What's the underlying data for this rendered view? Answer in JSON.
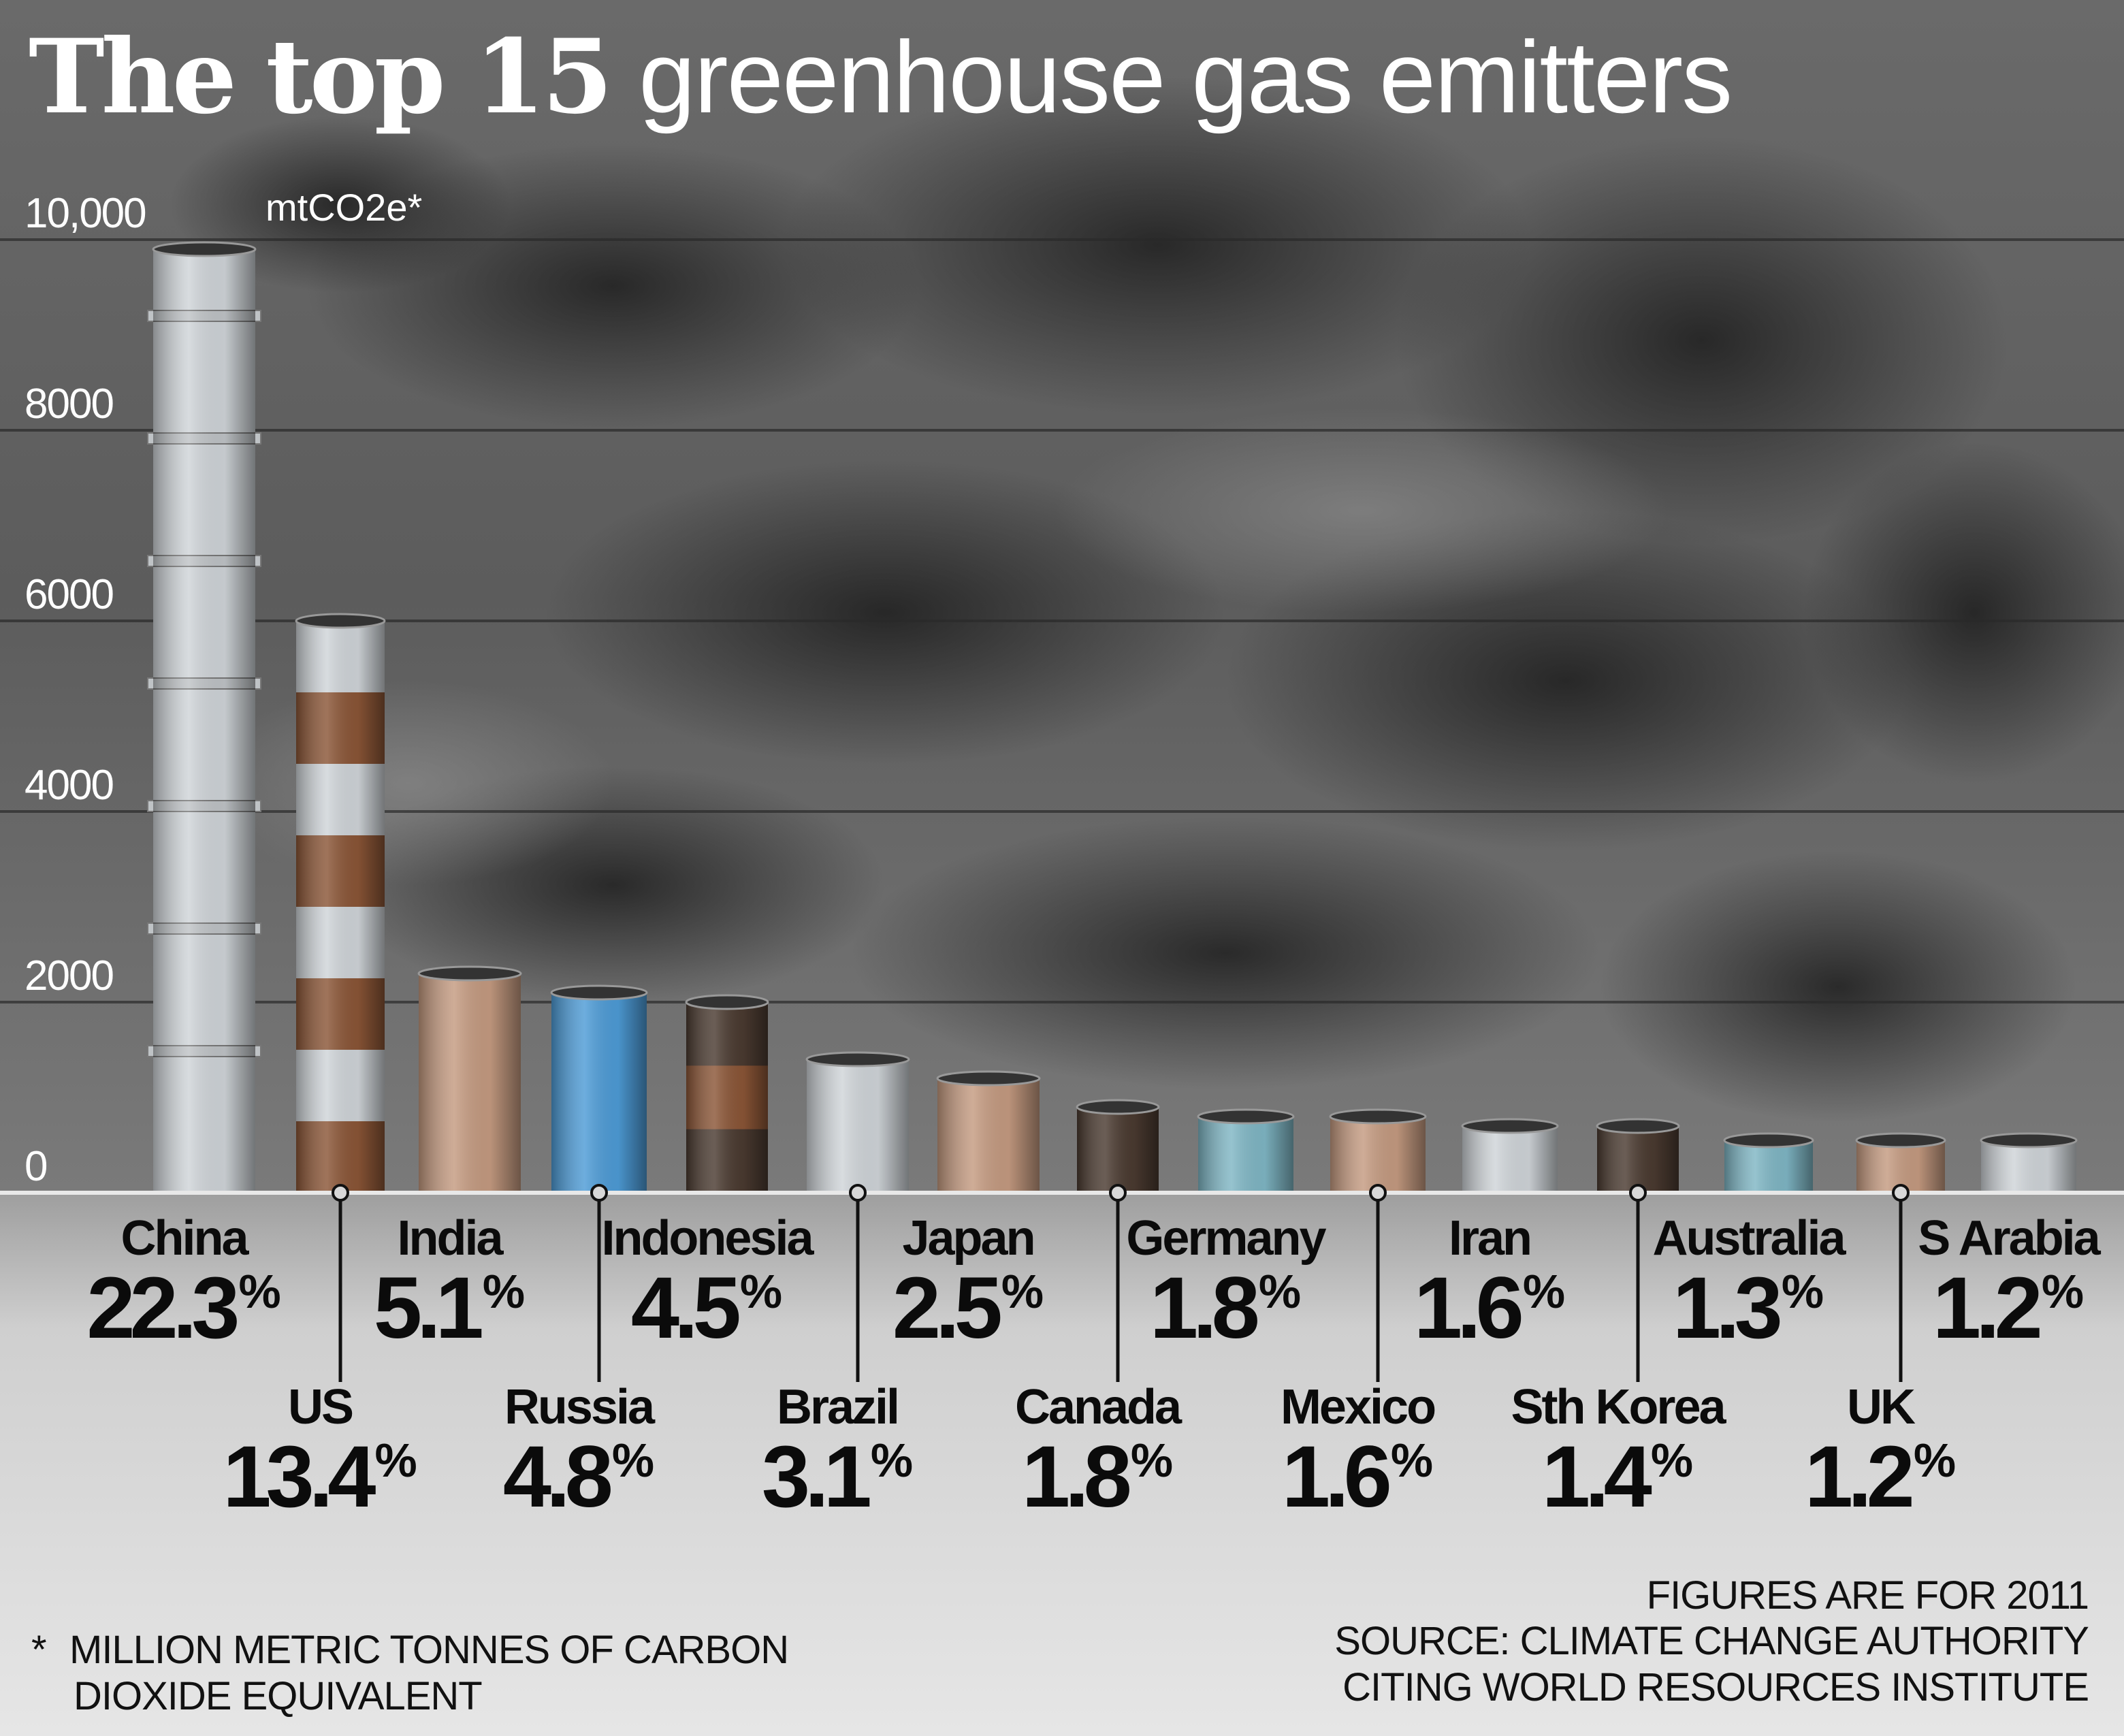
{
  "title": {
    "bold": "The top 15",
    "light": "greenhouse gas emitters"
  },
  "unit_label": "mtCO2e*",
  "footnote": {
    "marker": "*",
    "line1": "MILLION METRIC TONNES OF CARBON",
    "line2": "DIOXIDE EQUIVALENT"
  },
  "source": {
    "line1": "FIGURES ARE FOR 2011",
    "line2": "SOURCE: CLIMATE CHANGE AUTHORITY",
    "line3": "CITING WORLD RESOURCES INSTITUTE"
  },
  "colors": {
    "sky": "#5a5a5a",
    "smoke": "#2e2e2e",
    "label_band": "#d6d6d6",
    "chimney_white": "#cfd4d8",
    "chimney_rust": "#8a5536",
    "chimney_tan": "#c49a80",
    "chimney_blue": "#4d9bd6",
    "chimney_dark": "#4a3a30",
    "chimney_teal": "#7fb6c4"
  },
  "chart_data": {
    "type": "bar",
    "title": "The top 15 greenhouse gas emitters",
    "ylabel": "mtCO2e*",
    "ylim": [
      0,
      10000
    ],
    "yticks": [
      "0",
      "2000",
      "4000",
      "6000",
      "8000",
      "10,000"
    ],
    "grid": true,
    "categories": [
      "China",
      "US",
      "India",
      "Russia",
      "Indonesia",
      "Brazil",
      "Japan",
      "Canada",
      "Germany",
      "Mexico",
      "Iran",
      "Sth Korea",
      "Australia",
      "UK",
      "S Arabia"
    ],
    "values": [
      9900,
      6000,
      2300,
      2100,
      2000,
      1400,
      1200,
      900,
      800,
      800,
      700,
      700,
      550,
      550,
      550
    ],
    "shares": [
      "22.3",
      "13.4",
      "5.1",
      "4.8",
      "4.5",
      "3.1",
      "2.5",
      "1.8",
      "1.8",
      "1.6",
      "1.6",
      "1.4",
      "1.3",
      "1.2",
      "1.2"
    ],
    "share_unit": "%",
    "chimney_styles": [
      "white",
      "striped",
      "tan",
      "blue",
      "dark-rust",
      "white",
      "tan",
      "dark",
      "teal",
      "tan",
      "white",
      "dark",
      "teal",
      "tan",
      "white"
    ]
  }
}
